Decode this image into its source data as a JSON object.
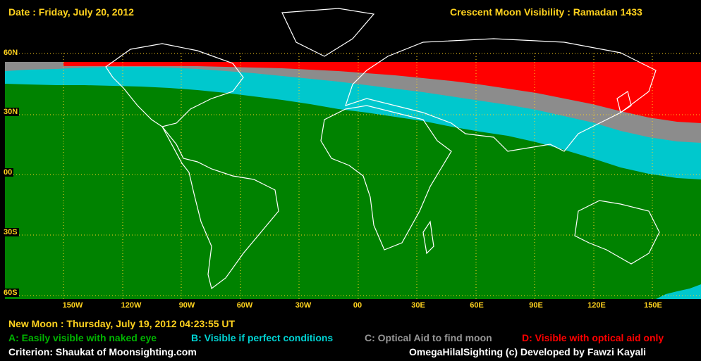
{
  "header": {
    "date": "Date : Friday, July 20, 2012",
    "title": "Crescent Moon Visibility : Ramadan  1433"
  },
  "footer": {
    "new_moon": "New Moon : Thursday, July 19, 2012  04:23:55  UT",
    "criterion": "Criterion: Shaukat of Moonsighting.com",
    "credit": "OmegaHilalSighting  (c)  Developed by Fawzi Kayali"
  },
  "legend": [
    {
      "label": "A: Easily visible with naked eye",
      "color": "#00b400"
    },
    {
      "label": "B: Visible if perfect conditions",
      "color": "#00d2d2"
    },
    {
      "label": "C: Optical Aid to find moon",
      "color": "#969696"
    },
    {
      "label": "D: Visible with optical aid only",
      "color": "#ff0000"
    }
  ],
  "colors": {
    "zone_a": "#008200",
    "zone_b": "#00c8cd",
    "zone_c": "#8c8c8c",
    "zone_d": "#ff0000",
    "grid": "#ffd21e",
    "text": "#ffd21e"
  },
  "axes": {
    "lat_labels": [
      "60N",
      "30N",
      "00",
      "30S",
      "60S"
    ],
    "lon_labels": [
      "150W",
      "120W",
      "90W",
      "60W",
      "30W",
      "00",
      "30E",
      "60E",
      "90E",
      "120E",
      "150E"
    ]
  }
}
